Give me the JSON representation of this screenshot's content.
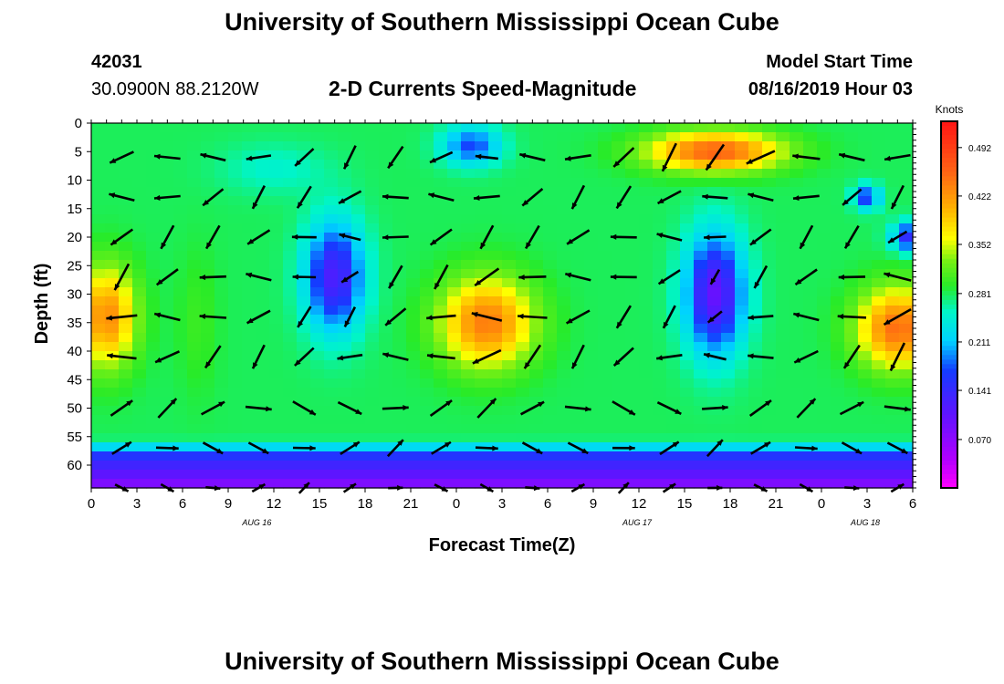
{
  "page": {
    "title_top": "University of Southern Mississippi Ocean Cube",
    "title_bottom": "University of Southern Mississippi Ocean Cube",
    "station_id": "42031",
    "station_coords": "30.0900N 88.2120W",
    "plot_subtitle": "2-D Currents Speed-Magnitude",
    "model_start_label": "Model Start Time",
    "model_start_value": "08/16/2019 Hour 03"
  },
  "chart_data": {
    "type": "heatmap",
    "title": "2-D Currents Speed-Magnitude",
    "xlabel": "Forecast Time(Z)",
    "ylabel": "Depth (ft)",
    "x_tick_labels": [
      "0",
      "3",
      "6",
      "9",
      "12",
      "15",
      "18",
      "21",
      "0",
      "3",
      "6",
      "9",
      "12",
      "15",
      "18",
      "21",
      "0",
      "3",
      "6"
    ],
    "x_range_hours": [
      0,
      54
    ],
    "date_labels": [
      {
        "text": "AUG 16",
        "hour": 11
      },
      {
        "text": "AUG 17",
        "hour": 36
      },
      {
        "text": "AUG 18",
        "hour": 51
      }
    ],
    "y_tick_labels": [
      "0",
      "5",
      "10",
      "15",
      "20",
      "25",
      "30",
      "35",
      "40",
      "45",
      "50",
      "55",
      "60"
    ],
    "ylim": [
      0,
      64
    ],
    "y_inverted": true,
    "colorbar": {
      "unit": "Knots",
      "range": [
        0.0,
        0.53
      ],
      "ticks": [
        0.07,
        0.141,
        0.211,
        0.281,
        0.352,
        0.422,
        0.492
      ],
      "tick_labels": [
        "0.070",
        "0.141",
        "0.211",
        "0.281",
        "0.352",
        "0.422",
        "0.492"
      ]
    },
    "speed_field": {
      "background": 0.28,
      "features": [
        {
          "hour": 1,
          "depth": 34,
          "speed": 0.43,
          "spread_h": 2.2,
          "spread_d": 10
        },
        {
          "hour": 7,
          "depth": 35,
          "speed": 0.3,
          "spread_h": 1.5,
          "spread_d": 14
        },
        {
          "hour": 16,
          "depth": 27,
          "speed": 0.12,
          "spread_h": 2.2,
          "spread_d": 11
        },
        {
          "hour": 12,
          "depth": 8,
          "speed": 0.25,
          "spread_h": 4,
          "spread_d": 5
        },
        {
          "hour": 25,
          "depth": 4,
          "speed": 0.17,
          "spread_h": 2.2,
          "spread_d": 4
        },
        {
          "hour": 26,
          "depth": 35,
          "speed": 0.44,
          "spread_h": 3.5,
          "spread_d": 9
        },
        {
          "hour": 41,
          "depth": 30,
          "speed": 0.1,
          "spread_h": 2.2,
          "spread_d": 12
        },
        {
          "hour": 41,
          "depth": 5,
          "speed": 0.46,
          "spread_h": 5,
          "spread_d": 4
        },
        {
          "hour": 53,
          "depth": 36,
          "speed": 0.45,
          "spread_h": 3,
          "spread_d": 8
        },
        {
          "hour": 51,
          "depth": 13,
          "speed": 0.16,
          "spread_h": 1,
          "spread_d": 2.5
        },
        {
          "hour": 54,
          "depth": 20,
          "speed": 0.13,
          "spread_h": 1.5,
          "spread_d": 3
        }
      ],
      "bottom_layer": {
        "depth_from": 55,
        "depth_to": 64,
        "speed_top": 0.21,
        "speed_bottom": 0.07
      }
    },
    "vector_grid": {
      "hours": [
        2,
        5,
        8,
        11,
        14,
        17,
        20,
        23,
        26,
        29,
        32,
        35,
        38,
        41,
        44,
        47,
        50,
        53
      ],
      "depths": [
        6,
        13,
        20,
        27,
        34,
        41,
        50,
        57,
        64
      ],
      "arrow_length_per_knot": 60
    }
  }
}
